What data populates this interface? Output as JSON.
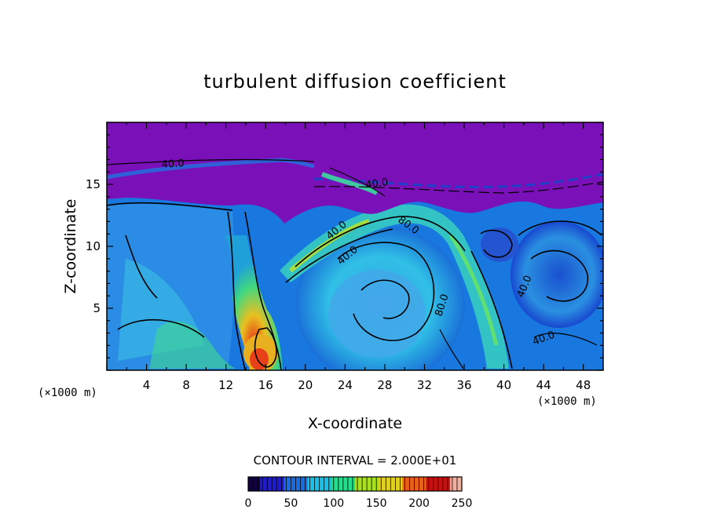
{
  "chart_data": {
    "type": "heatmap",
    "title": "turbulent diffusion coefficient",
    "xlabel": "X-coordinate",
    "ylabel": "Z-coordinate",
    "x_unit_label": "(×1000 m)",
    "y_unit_label": "(×1000 m)",
    "xlim": [
      0,
      50
    ],
    "ylim": [
      0,
      20
    ],
    "x_ticks": [
      4,
      8,
      12,
      16,
      20,
      24,
      28,
      32,
      36,
      40,
      44,
      48
    ],
    "y_ticks": [
      5,
      10,
      15
    ],
    "contour_interval_label": "CONTOUR INTERVAL =  2.000E+01",
    "contour_labels": [
      "40.0",
      "40.0",
      "40.0",
      "80.0",
      "40.0",
      "80.0",
      "40.0",
      "40.0"
    ],
    "colorbar": {
      "min": 0,
      "max": 250,
      "ticks": [
        0,
        50,
        100,
        150,
        200,
        250
      ],
      "colors": [
        "#100040",
        "#1e1ad0",
        "#1a6ae0",
        "#18c0e8",
        "#20e08a",
        "#a8e020",
        "#e0d020",
        "#e86018",
        "#c81010",
        "#f0b0a0"
      ]
    },
    "colors": {
      "upper_layer": "#7a10b8",
      "background_field": "#1878e0",
      "contour": "#000000"
    }
  }
}
